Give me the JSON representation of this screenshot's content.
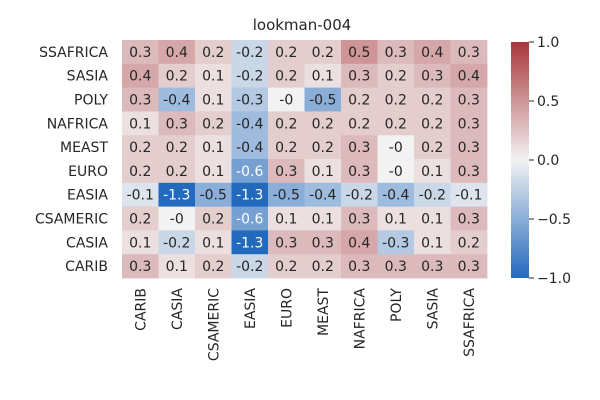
{
  "chart_data": {
    "type": "heatmap",
    "title": "lookman-004",
    "xlabel": "",
    "ylabel": "",
    "x_categories": [
      "CARIB",
      "CASIA",
      "CSAMERIC",
      "EASIA",
      "EURO",
      "MEAST",
      "NAFRICA",
      "POLY",
      "SASIA",
      "SSAFRICA"
    ],
    "y_categories": [
      "SSAFRICA",
      "SASIA",
      "POLY",
      "NAFRICA",
      "MEAST",
      "EURO",
      "EASIA",
      "CSAMERIC",
      "CASIA",
      "CARIB"
    ],
    "values": [
      [
        0.3,
        0.4,
        0.2,
        -0.2,
        0.2,
        0.2,
        0.5,
        0.3,
        0.4,
        0.3
      ],
      [
        0.4,
        0.2,
        0.1,
        -0.2,
        0.2,
        0.1,
        0.3,
        0.2,
        0.3,
        0.4
      ],
      [
        0.3,
        -0.4,
        0.1,
        -0.3,
        -0.0,
        -0.5,
        0.2,
        0.2,
        0.2,
        0.3
      ],
      [
        0.1,
        0.3,
        0.2,
        -0.4,
        0.2,
        0.2,
        0.2,
        0.2,
        0.2,
        0.3
      ],
      [
        0.2,
        0.2,
        0.1,
        -0.4,
        0.2,
        0.2,
        0.3,
        -0.0,
        0.2,
        0.3
      ],
      [
        0.2,
        0.2,
        0.1,
        -0.6,
        0.3,
        0.1,
        0.3,
        -0.0,
        0.1,
        0.3
      ],
      [
        -0.1,
        -1.3,
        -0.5,
        -1.3,
        -0.5,
        -0.4,
        -0.2,
        -0.4,
        -0.2,
        -0.1
      ],
      [
        0.2,
        -0.0,
        0.2,
        -0.6,
        0.1,
        0.1,
        0.3,
        0.1,
        0.1,
        0.3
      ],
      [
        0.1,
        -0.2,
        0.1,
        -1.3,
        0.3,
        0.3,
        0.4,
        -0.3,
        0.1,
        0.2
      ],
      [
        0.3,
        0.1,
        0.2,
        -0.2,
        0.2,
        0.2,
        0.3,
        0.3,
        0.3,
        0.3
      ]
    ],
    "labels": [
      [
        "0.3",
        "0.4",
        "0.2",
        "-0.2",
        "0.2",
        "0.2",
        "0.5",
        "0.3",
        "0.4",
        "0.3"
      ],
      [
        "0.4",
        "0.2",
        "0.1",
        "-0.2",
        "0.2",
        "0.1",
        "0.3",
        "0.2",
        "0.3",
        "0.4"
      ],
      [
        "0.3",
        "-0.4",
        "0.1",
        "-0.3",
        "-0",
        "-0.5",
        "0.2",
        "0.2",
        "0.2",
        "0.3"
      ],
      [
        "0.1",
        "0.3",
        "0.2",
        "-0.4",
        "0.2",
        "0.2",
        "0.2",
        "0.2",
        "0.2",
        "0.3"
      ],
      [
        "0.2",
        "0.2",
        "0.1",
        "-0.4",
        "0.2",
        "0.2",
        "0.3",
        "-0",
        "0.2",
        "0.3"
      ],
      [
        "0.2",
        "0.2",
        "0.1",
        "-0.6",
        "0.3",
        "0.1",
        "0.3",
        "-0",
        "0.1",
        "0.3"
      ],
      [
        "-0.1",
        "-1.3",
        "-0.5",
        "-1.3",
        "-0.5",
        "-0.4",
        "-0.2",
        "-0.4",
        "-0.2",
        "-0.1"
      ],
      [
        "0.2",
        "-0",
        "0.2",
        "-0.6",
        "0.1",
        "0.1",
        "0.3",
        "0.1",
        "0.1",
        "0.3"
      ],
      [
        "0.1",
        "-0.2",
        "0.1",
        "-1.3",
        "0.3",
        "0.3",
        "0.4",
        "-0.3",
        "0.1",
        "0.2"
      ],
      [
        "0.3",
        "0.1",
        "0.2",
        "-0.2",
        "0.2",
        "0.2",
        "0.3",
        "0.3",
        "0.3",
        "0.3"
      ]
    ],
    "colorbar": {
      "colormap": "vlag",
      "vmin": -1.0,
      "vmax": 1.0,
      "ticks": [
        1.0,
        0.5,
        0.0,
        -0.5,
        -1.0
      ],
      "tick_labels": [
        "1.0",
        "0.5",
        "0.0",
        "−0.5",
        "−1.0"
      ],
      "low_color": "#2369bd",
      "mid_color": "#f2f2f2",
      "high_color": "#a9373b"
    },
    "grid": false
  }
}
